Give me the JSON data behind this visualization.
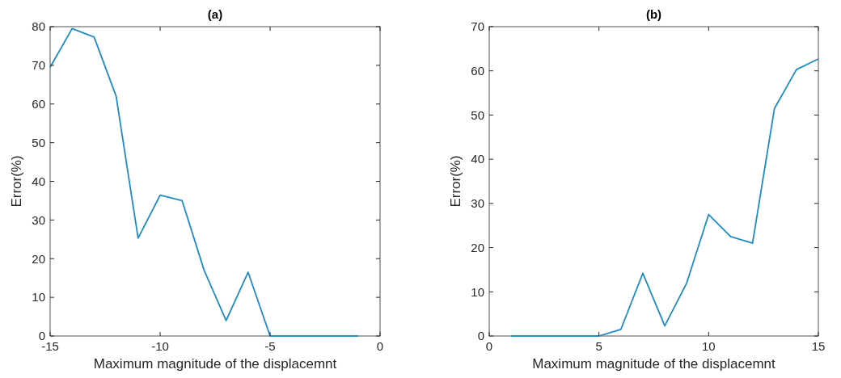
{
  "chart_data": [
    {
      "type": "line",
      "title": "(a)",
      "xlabel": "Maximum magnitude of the displacemnt",
      "ylabel": "Error(%)",
      "x": [
        -15,
        -14,
        -13,
        -12,
        -11,
        -10,
        -9,
        -8,
        -7,
        -6,
        -5,
        -4,
        -3,
        -2,
        -1
      ],
      "series": [
        {
          "color": "#1f8bc4",
          "values": [
            69.5,
            79.5,
            77.3,
            62,
            25.3,
            36.4,
            35,
            17,
            4,
            16.5,
            0,
            0,
            0,
            0,
            0
          ]
        }
      ],
      "xlim": [
        -15,
        0
      ],
      "xticks": [
        -15,
        -10,
        -5,
        0
      ],
      "ylim": [
        0,
        80
      ],
      "yticks": [
        0,
        10,
        20,
        30,
        40,
        50,
        60,
        70,
        80
      ],
      "grid": false
    },
    {
      "type": "line",
      "title": "(b)",
      "xlabel": "Maximum magnitude of the displacemnt",
      "ylabel": "Error(%)",
      "x": [
        1,
        2,
        3,
        4,
        5,
        6,
        7,
        8,
        9,
        10,
        11,
        12,
        13,
        14,
        15
      ],
      "series": [
        {
          "color": "#1f8bc4",
          "values": [
            0,
            0,
            0,
            0,
            0,
            1.5,
            14.2,
            2.3,
            12,
            27.5,
            22.5,
            21,
            51.5,
            60.3,
            62.7
          ]
        }
      ],
      "xlim": [
        0,
        15
      ],
      "xticks": [
        0,
        5,
        10,
        15
      ],
      "ylim": [
        0,
        70
      ],
      "yticks": [
        0,
        10,
        20,
        30,
        40,
        50,
        60,
        70
      ],
      "grid": false
    }
  ]
}
